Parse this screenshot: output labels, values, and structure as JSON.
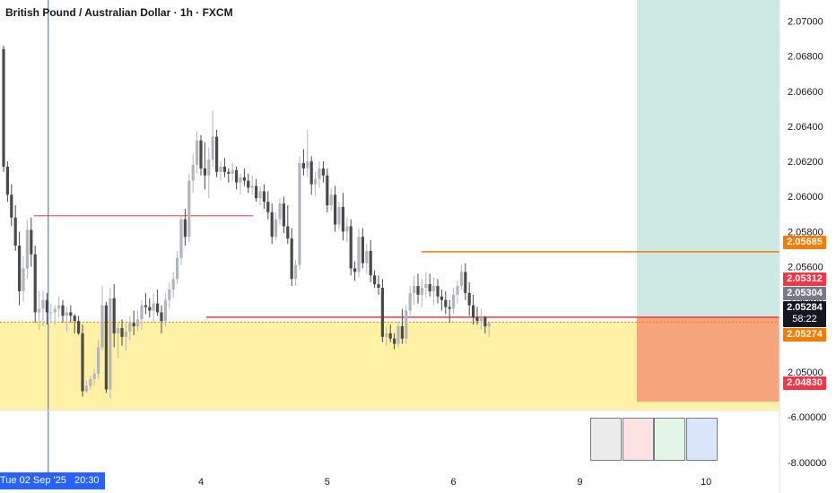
{
  "header": {
    "title": "British Pound / Australian Dollar · 1h · FXCM"
  },
  "chart_data": {
    "type": "candlestick",
    "title": "British Pound / Australian Dollar · 1h · FXCM",
    "y_ticks": [
      "2.07000",
      "2.06800",
      "2.06600",
      "2.06400",
      "2.06200",
      "2.06000",
      "2.05800",
      "2.05600",
      "2.05400",
      "2.05200",
      "2.05000"
    ],
    "y_tick_values": [
      2.07,
      2.068,
      2.066,
      2.064,
      2.062,
      2.06,
      2.058,
      2.056,
      2.054,
      2.052,
      2.05
    ],
    "ylim": [
      2.0478,
      2.0712
    ],
    "x_ticks": [
      "4",
      "5",
      "6",
      "9",
      "10"
    ],
    "x_tick_index": [
      50,
      82,
      114,
      146,
      178
    ],
    "indicator_ticks": [
      "-6.00000",
      "-8.00000"
    ],
    "candles_ohlc": [
      [
        2.0684,
        2.0686,
        2.0614,
        2.0617
      ],
      [
        2.0617,
        2.062,
        2.0597,
        2.0601
      ],
      [
        2.0601,
        2.0607,
        2.0583,
        2.0588
      ],
      [
        2.0588,
        2.0595,
        2.0569,
        2.0572
      ],
      [
        2.0572,
        2.058,
        2.0538,
        2.0546
      ],
      [
        2.0546,
        2.0566,
        2.054,
        2.0559
      ],
      [
        2.0559,
        2.0587,
        2.0553,
        2.0581
      ],
      [
        2.0581,
        2.0588,
        2.056,
        2.0567
      ],
      [
        2.0567,
        2.0572,
        2.0528,
        2.0534
      ],
      [
        2.0534,
        2.0546,
        2.0524,
        2.0536
      ],
      [
        2.0536,
        2.0546,
        2.0526,
        2.0541
      ],
      [
        2.0541,
        2.0545,
        2.0527,
        2.0534
      ],
      [
        2.0534,
        2.0539,
        2.0528,
        2.0534
      ],
      [
        2.0534,
        2.0538,
        2.0527,
        2.0536
      ],
      [
        2.0536,
        2.0543,
        2.0531,
        2.0538
      ],
      [
        2.0538,
        2.0541,
        2.0528,
        2.0532
      ],
      [
        2.0532,
        2.0537,
        2.0523,
        2.0534
      ],
      [
        2.0534,
        2.0538,
        2.0528,
        2.0532
      ],
      [
        2.0532,
        2.0533,
        2.0522,
        2.0529
      ],
      [
        2.0529,
        2.0532,
        2.0521,
        2.0522
      ],
      [
        2.0522,
        2.0527,
        2.0486,
        2.0489
      ],
      [
        2.0489,
        2.0495,
        2.0488,
        2.0492
      ],
      [
        2.0492,
        2.0498,
        2.049,
        2.0496
      ],
      [
        2.0496,
        2.0502,
        2.0492,
        2.0499
      ],
      [
        2.0499,
        2.0518,
        2.0496,
        2.0514
      ],
      [
        2.0514,
        2.0549,
        2.0512,
        2.0538
      ],
      [
        2.0538,
        2.054,
        2.0488,
        2.049
      ],
      [
        2.049,
        2.0548,
        2.0485,
        2.0542
      ],
      [
        2.0542,
        2.055,
        2.0514,
        2.0522
      ],
      [
        2.0522,
        2.0528,
        2.0508,
        2.0525
      ],
      [
        2.0525,
        2.053,
        2.0515,
        2.052
      ],
      [
        2.052,
        2.0528,
        2.0512,
        2.0523
      ],
      [
        2.0523,
        2.0532,
        2.0518,
        2.0528
      ],
      [
        2.0528,
        2.0535,
        2.0521,
        2.0526
      ],
      [
        2.0526,
        2.0535,
        2.0523,
        2.053
      ],
      [
        2.053,
        2.0541,
        2.0524,
        2.0538
      ],
      [
        2.0538,
        2.0545,
        2.0533,
        2.0537
      ],
      [
        2.0537,
        2.0542,
        2.0531,
        2.0535
      ],
      [
        2.0535,
        2.0545,
        2.0528,
        2.0539
      ],
      [
        2.0539,
        2.0547,
        2.0532,
        2.0534
      ],
      [
        2.0534,
        2.0538,
        2.0522,
        2.0529
      ],
      [
        2.0529,
        2.0545,
        2.0526,
        2.0541
      ],
      [
        2.0541,
        2.0551,
        2.0536,
        2.0547
      ],
      [
        2.0547,
        2.0557,
        2.0542,
        2.0553
      ],
      [
        2.0553,
        2.0569,
        2.055,
        2.0565
      ],
      [
        2.0565,
        2.059,
        2.0561,
        2.0587
      ],
      [
        2.0587,
        2.0593,
        2.0572,
        2.0577
      ],
      [
        2.0577,
        2.0613,
        2.0574,
        2.0609
      ],
      [
        2.0609,
        2.0624,
        2.0602,
        2.0618
      ],
      [
        2.0618,
        2.0637,
        2.0613,
        2.0632
      ],
      [
        2.0632,
        2.0635,
        2.0612,
        2.0616
      ],
      [
        2.0616,
        2.0631,
        2.0604,
        2.0612
      ],
      [
        2.0612,
        2.0628,
        2.0599,
        2.0621
      ],
      [
        2.0621,
        2.0649,
        2.0617,
        2.0634
      ],
      [
        2.0634,
        2.0638,
        2.0611,
        2.0614
      ],
      [
        2.0614,
        2.062,
        2.0609,
        2.0617
      ],
      [
        2.0617,
        2.0622,
        2.0611,
        2.0614
      ],
      [
        2.0614,
        2.0616,
        2.0608,
        2.0613
      ],
      [
        2.0613,
        2.0619,
        2.0609,
        2.0615
      ],
      [
        2.0615,
        2.0617,
        2.0604,
        2.0608
      ],
      [
        2.0608,
        2.0613,
        2.0601,
        2.0611
      ],
      [
        2.0611,
        2.0616,
        2.0606,
        2.0609
      ],
      [
        2.0609,
        2.0613,
        2.0602,
        2.0605
      ],
      [
        2.0605,
        2.0612,
        2.0601,
        2.0606
      ],
      [
        2.0606,
        2.061,
        2.0597,
        2.0599
      ],
      [
        2.0599,
        2.0606,
        2.0595,
        2.0603
      ],
      [
        2.0603,
        2.0607,
        2.0593,
        2.0597
      ],
      [
        2.0597,
        2.0603,
        2.0587,
        2.0591
      ],
      [
        2.0591,
        2.0596,
        2.0573,
        2.0577
      ],
      [
        2.0577,
        2.0591,
        2.0575,
        2.0587
      ],
      [
        2.0587,
        2.0599,
        2.0584,
        2.0596
      ],
      [
        2.0596,
        2.06,
        2.0579,
        2.0583
      ],
      [
        2.0583,
        2.0595,
        2.0573,
        2.0576
      ],
      [
        2.0576,
        2.0582,
        2.0549,
        2.0553
      ],
      [
        2.0553,
        2.0564,
        2.0549,
        2.0561
      ],
      [
        2.0561,
        2.0623,
        2.0558,
        2.0619
      ],
      [
        2.0619,
        2.0627,
        2.0612,
        2.0616
      ],
      [
        2.0616,
        2.0638,
        2.0611,
        2.062
      ],
      [
        2.062,
        2.0623,
        2.0601,
        2.0607
      ],
      [
        2.0607,
        2.0614,
        2.06,
        2.061
      ],
      [
        2.061,
        2.062,
        2.0605,
        2.0616
      ],
      [
        2.0616,
        2.062,
        2.0608,
        2.0612
      ],
      [
        2.0612,
        2.0616,
        2.0591,
        2.0595
      ],
      [
        2.0595,
        2.0605,
        2.0592,
        2.0601
      ],
      [
        2.0601,
        2.0606,
        2.058,
        2.0584
      ],
      [
        2.0584,
        2.0597,
        2.0581,
        2.0594
      ],
      [
        2.0594,
        2.0602,
        2.0575,
        2.058
      ],
      [
        2.058,
        2.0588,
        2.0574,
        2.0583
      ],
      [
        2.0583,
        2.0587,
        2.0555,
        2.0559
      ],
      [
        2.0559,
        2.0563,
        2.0552,
        2.0557
      ],
      [
        2.0557,
        2.0582,
        2.0554,
        2.0577
      ],
      [
        2.0577,
        2.0582,
        2.0559,
        2.0562
      ],
      [
        2.0562,
        2.0573,
        2.0556,
        2.0569
      ],
      [
        2.0569,
        2.0575,
        2.0551,
        2.0555
      ],
      [
        2.0555,
        2.0558,
        2.0548,
        2.055
      ],
      [
        2.055,
        2.0555,
        2.0544,
        2.0548
      ],
      [
        2.0548,
        2.0553,
        2.0517,
        2.052
      ],
      [
        2.052,
        2.0526,
        2.0515,
        2.0522
      ],
      [
        2.0522,
        2.0527,
        2.0517,
        2.0519
      ],
      [
        2.0519,
        2.0522,
        2.0513,
        2.0516
      ],
      [
        2.0516,
        2.0529,
        2.0514,
        2.0526
      ],
      [
        2.0526,
        2.0536,
        2.0516,
        2.0519
      ],
      [
        2.0519,
        2.0538,
        2.0516,
        2.0535
      ],
      [
        2.0535,
        2.0549,
        2.0531,
        2.0545
      ],
      [
        2.0545,
        2.0555,
        2.0538,
        2.0549
      ],
      [
        2.0549,
        2.0556,
        2.0539,
        2.0544
      ],
      [
        2.0544,
        2.0553,
        2.0537,
        2.0548
      ],
      [
        2.0548,
        2.0557,
        2.0542,
        2.055
      ],
      [
        2.055,
        2.0556,
        2.0543,
        2.0546
      ],
      [
        2.0546,
        2.0554,
        2.0538,
        2.0549
      ],
      [
        2.0549,
        2.0553,
        2.0539,
        2.0543
      ],
      [
        2.0543,
        2.0547,
        2.0535,
        2.0541
      ],
      [
        2.0541,
        2.0546,
        2.0533,
        2.0537
      ],
      [
        2.0537,
        2.0541,
        2.0528,
        2.0536
      ],
      [
        2.0536,
        2.0548,
        2.0533,
        2.0544
      ],
      [
        2.0544,
        2.0552,
        2.0539,
        2.0549
      ],
      [
        2.0549,
        2.0561,
        2.0547,
        2.0557
      ],
      [
        2.0557,
        2.0562,
        2.0541,
        2.0545
      ],
      [
        2.0545,
        2.0551,
        2.0532,
        2.0538
      ],
      [
        2.0538,
        2.0544,
        2.0527,
        2.0531
      ],
      [
        2.0531,
        2.0537,
        2.0527,
        2.0529
      ],
      [
        2.0529,
        2.0536,
        2.0524,
        2.0531
      ],
      [
        2.0531,
        2.0532,
        2.0522,
        2.0526
      ],
      [
        2.0526,
        2.0529,
        2.052,
        2.0528
      ]
    ],
    "horizontal_lines": [
      {
        "price": 2.05685,
        "color": "#f57c00"
      },
      {
        "price": 2.05312,
        "color": "#f23645"
      },
      {
        "price": 2.05284,
        "color": "#f57c00"
      }
    ],
    "box_red_upper_price": 2.0589,
    "vertical_line_index": 12,
    "position_tool": {
      "target_top": 2.0712,
      "entry_price": 2.05312,
      "stop_price": 2.0483,
      "target_color": "#cde9e4",
      "stop_color": "#f6a57d"
    },
    "zone_top_price": 2.05284,
    "zone_color": "#fff1a6"
  },
  "price_scale_tags": {
    "tag1": {
      "text": "2.05685",
      "bg": "#f57c00"
    },
    "tag2": {
      "text": "2.05312",
      "bg": "#f23645"
    },
    "tag3": {
      "text": "2.05304",
      "bg": "#787b86"
    },
    "tag4": {
      "text": "2.05284",
      "sub": "58:22",
      "bg": "#131722"
    },
    "tag5": {
      "text": "2.05274",
      "bg": "#f57c00"
    },
    "tag6": {
      "text": "2.04830",
      "bg": "#f23645"
    }
  },
  "crosshair_label": "Tue 02 Sep '25   20:30",
  "swatches": [
    "#ececed",
    "#fde2e3",
    "#e4f4e6",
    "#dce6fb"
  ]
}
